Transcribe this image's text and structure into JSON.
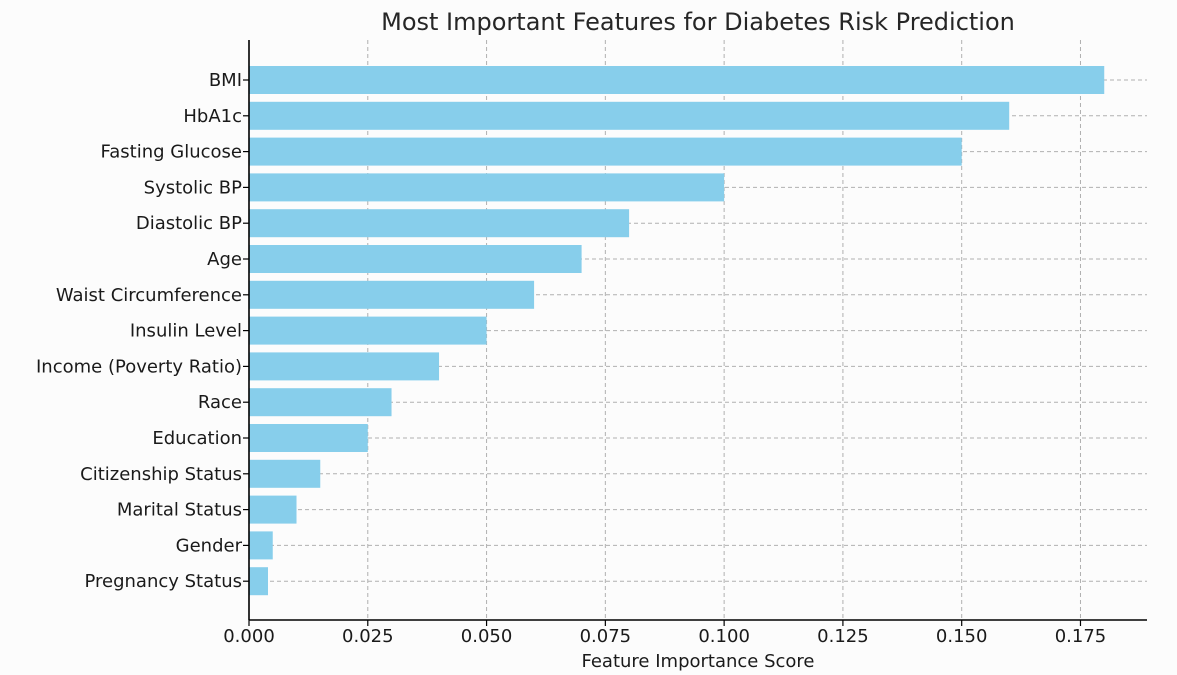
{
  "chart_data": {
    "type": "bar",
    "orientation": "horizontal",
    "title": "Most Important Features for Diabetes Risk Prediction",
    "xlabel": "Feature Importance Score",
    "ylabel": "",
    "categories": [
      "BMI",
      "HbA1c",
      "Fasting Glucose",
      "Systolic BP",
      "Diastolic BP",
      "Age",
      "Waist Circumference",
      "Insulin Level",
      "Income (Poverty Ratio)",
      "Race",
      "Education",
      "Citizenship Status",
      "Marital Status",
      "Gender",
      "Pregnancy Status"
    ],
    "values": [
      0.18,
      0.16,
      0.15,
      0.1,
      0.08,
      0.07,
      0.06,
      0.05,
      0.04,
      0.03,
      0.025,
      0.015,
      0.01,
      0.005,
      0.004
    ],
    "xlim": [
      0,
      0.189
    ],
    "xticks": [
      0.0,
      0.025,
      0.05,
      0.075,
      0.1,
      0.125,
      0.15,
      0.175
    ],
    "xtick_labels": [
      "0.000",
      "0.025",
      "0.050",
      "0.075",
      "0.100",
      "0.125",
      "0.150",
      "0.175"
    ],
    "grid": true,
    "bar_color": "#87ceeb",
    "grid_color": "#b0b0b0"
  }
}
